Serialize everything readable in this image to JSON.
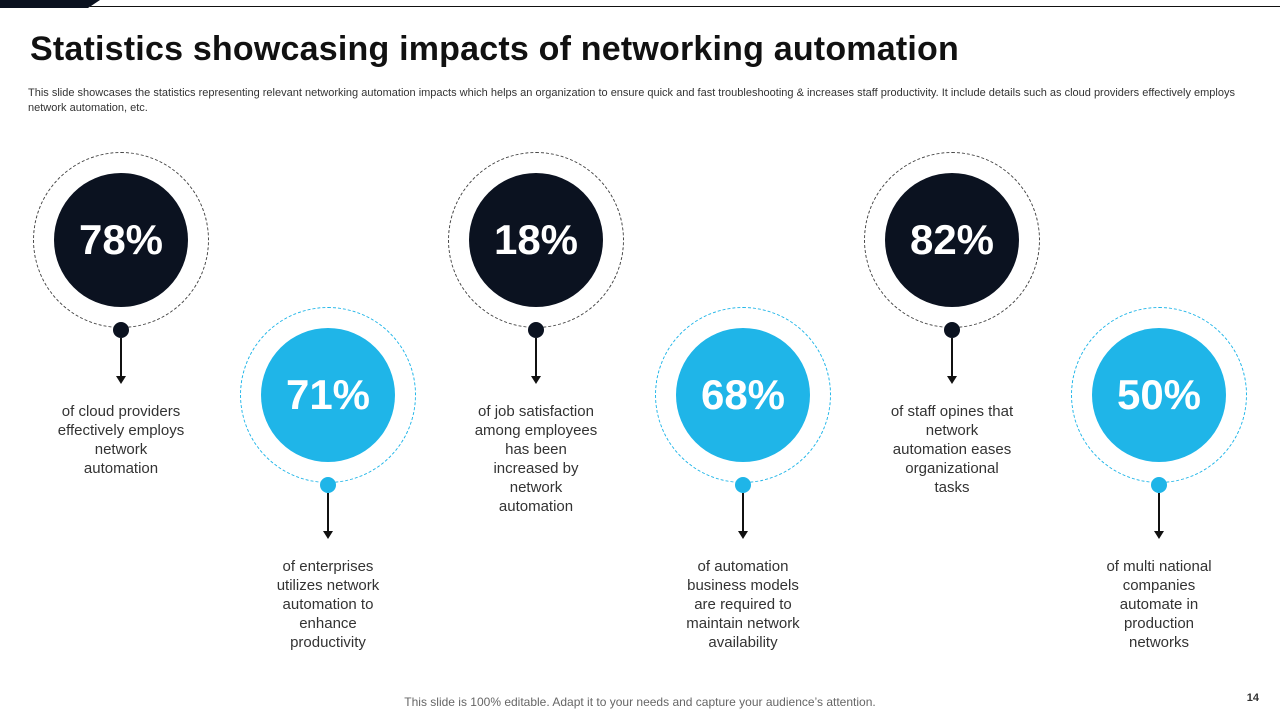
{
  "slide": {
    "title": "Statistics showcasing impacts of networking automation",
    "subtitle": "This slide showcases the statistics representing relevant networking automation impacts which helps an organization to  ensure quick and fast troubleshooting & increases staff productivity. It include details such as cloud providers effectively  employs network automation, etc.",
    "footer": "This slide is 100% editable. Adapt it to your needs and capture your audience’s attention.",
    "page_number": "14"
  },
  "colors": {
    "dark_navy": "#0b1220",
    "sky_blue": "#1fb5e8"
  },
  "stats": [
    {
      "value": "78%",
      "description": "of cloud providers effectively employs network automation",
      "style": "dark"
    },
    {
      "value": "71%",
      "description": "of enterprises utilizes network automation to enhance productivity",
      "style": "light"
    },
    {
      "value": "18%",
      "description": "of job satisfaction among employees has been increased by network automation",
      "style": "dark"
    },
    {
      "value": "68%",
      "description": "of automation business models are required to maintain network availability",
      "style": "light"
    },
    {
      "value": "82%",
      "description": "of staff opines that network automation eases organizational tasks",
      "style": "dark"
    },
    {
      "value": "50%",
      "description": "of multi national companies automate in production networks",
      "style": "light"
    }
  ]
}
